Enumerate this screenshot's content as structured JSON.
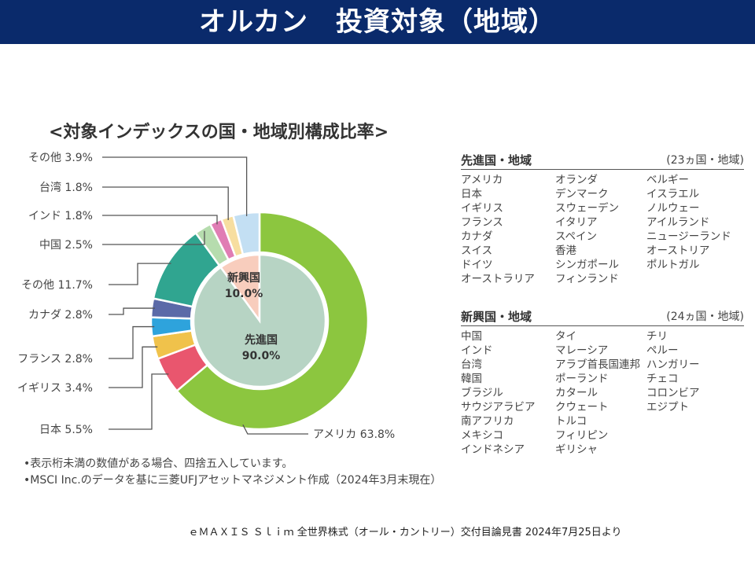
{
  "header": {
    "title": "オルカン　投資対象（地域）"
  },
  "chart_data": {
    "type": "pie",
    "title": "<対象インデックスの国・地域別構成比率>",
    "outer_ring": {
      "unit": "%",
      "slices": [
        {
          "label": "アメリカ",
          "value": 63.8,
          "text": "アメリカ 63.8%",
          "color": "#8cc63f"
        },
        {
          "label": "日本",
          "value": 5.5,
          "text": "日本 5.5%",
          "color": "#e9566e"
        },
        {
          "label": "イギリス",
          "value": 3.4,
          "text": "イギリス 3.4%",
          "color": "#f0c24b"
        },
        {
          "label": "フランス",
          "value": 2.8,
          "text": "フランス 2.8%",
          "color": "#2ea3dc"
        },
        {
          "label": "カナダ",
          "value": 2.8,
          "text": "カナダ 2.8%",
          "color": "#5b6aa8"
        },
        {
          "label": "その他",
          "value": 11.7,
          "text": "その他 11.7%",
          "color": "#30a590"
        },
        {
          "label": "中国",
          "value": 2.5,
          "text": "中国 2.5%",
          "color": "#b6dcae"
        },
        {
          "label": "インド",
          "value": 1.8,
          "text": "インド 1.8%",
          "color": "#e07db4"
        },
        {
          "label": "台湾",
          "value": 1.8,
          "text": "台湾 1.8%",
          "color": "#f7dea0"
        },
        {
          "label": "その他",
          "value": 3.9,
          "text": "その他 3.9%",
          "color": "#c3dff3"
        }
      ]
    },
    "inner_pie": {
      "unit": "%",
      "slices": [
        {
          "label": "先進国",
          "value": 90.0,
          "value_text": "90.0%",
          "color": "#b7d4c4"
        },
        {
          "label": "新興国",
          "value": 10.0,
          "value_text": "10.0%",
          "color": "#f8cdbd"
        }
      ]
    }
  },
  "developed": {
    "title": "先進国・地域",
    "count": "(23ヵ国・地域)",
    "columns": [
      [
        "アメリカ",
        "日本",
        "イギリス",
        "フランス",
        "カナダ",
        "スイス",
        "ドイツ",
        "オーストラリア"
      ],
      [
        "オランダ",
        "デンマーク",
        "スウェーデン",
        "イタリア",
        "スペイン",
        "香港",
        "シンガポール",
        "フィンランド"
      ],
      [
        "ベルギー",
        "イスラエル",
        "ノルウェー",
        "アイルランド",
        "ニュージーランド",
        "オーストリア",
        "ポルトガル"
      ]
    ]
  },
  "emerging": {
    "title": "新興国・地域",
    "count": "(24ヵ国・地域)",
    "columns": [
      [
        "中国",
        "インド",
        "台湾",
        "韓国",
        "ブラジル",
        "サウジアラビア",
        "南アフリカ",
        "メキシコ",
        "インドネシア"
      ],
      [
        "タイ",
        "マレーシア",
        "アラブ首長国連邦",
        "ポーランド",
        "カタール",
        "クウェート",
        "トルコ",
        "フィリピン",
        "ギリシャ"
      ],
      [
        "チリ",
        "ペルー",
        "ハンガリー",
        "チェコ",
        "コロンビア",
        "エジプト"
      ]
    ]
  },
  "notes": [
    "•表示桁未満の数値がある場合、四捨五入しています。",
    "•MSCI Inc.のデータを基に三菱UFJアセットマネジメント作成（2024年3月末現在）"
  ],
  "source": "ｅＭＡＸＩＳ Ｓｌｉｍ 全世界株式（オール・カントリー）交付目論見書 2024年7月25日より"
}
